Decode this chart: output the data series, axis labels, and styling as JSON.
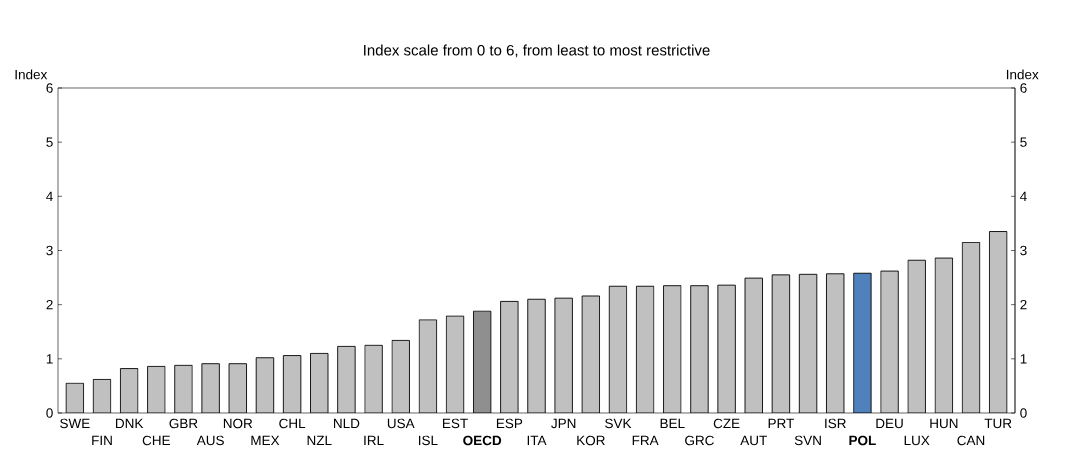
{
  "chart_data": {
    "type": "bar",
    "title": "Index scale from 0 to 6, from least to most restrictive",
    "ylabel": "Index",
    "y2label": "Index",
    "categories": [
      "SWE",
      "FIN",
      "DNK",
      "CHE",
      "GBR",
      "AUS",
      "NOR",
      "MEX",
      "CHL",
      "NZL",
      "NLD",
      "IRL",
      "USA",
      "ISL",
      "EST",
      "OECD",
      "ESP",
      "ITA",
      "JPN",
      "KOR",
      "SVK",
      "FRA",
      "BEL",
      "GRC",
      "CZE",
      "AUT",
      "PRT",
      "SVN",
      "ISR",
      "POL",
      "DEU",
      "LUX",
      "HUN",
      "CAN",
      "TUR"
    ],
    "values": [
      0.55,
      0.62,
      0.82,
      0.86,
      0.88,
      0.91,
      0.91,
      1.02,
      1.06,
      1.1,
      1.23,
      1.25,
      1.34,
      1.72,
      1.79,
      1.88,
      2.06,
      2.1,
      2.12,
      2.16,
      2.34,
      2.34,
      2.35,
      2.35,
      2.36,
      2.49,
      2.55,
      2.56,
      2.57,
      2.58,
      2.62,
      2.82,
      2.86,
      3.15,
      3.35
    ],
    "colors": [
      "#c0c0c0",
      "#c0c0c0",
      "#c0c0c0",
      "#c0c0c0",
      "#c0c0c0",
      "#c0c0c0",
      "#c0c0c0",
      "#c0c0c0",
      "#c0c0c0",
      "#c0c0c0",
      "#c0c0c0",
      "#c0c0c0",
      "#c0c0c0",
      "#c0c0c0",
      "#c0c0c0",
      "#8f8f8f",
      "#c0c0c0",
      "#c0c0c0",
      "#c0c0c0",
      "#c0c0c0",
      "#c0c0c0",
      "#c0c0c0",
      "#c0c0c0",
      "#c0c0c0",
      "#c0c0c0",
      "#c0c0c0",
      "#c0c0c0",
      "#c0c0c0",
      "#c0c0c0",
      "#4f81bd",
      "#c0c0c0",
      "#c0c0c0",
      "#c0c0c0",
      "#c0c0c0",
      "#c0c0c0"
    ],
    "ylim": [
      0,
      6
    ],
    "yticks": [
      0,
      1,
      2,
      3,
      4,
      5,
      6
    ],
    "y2lim": [
      0,
      6
    ],
    "y2ticks": [
      0,
      1,
      2,
      3,
      4,
      5,
      6
    ],
    "grid": false
  }
}
